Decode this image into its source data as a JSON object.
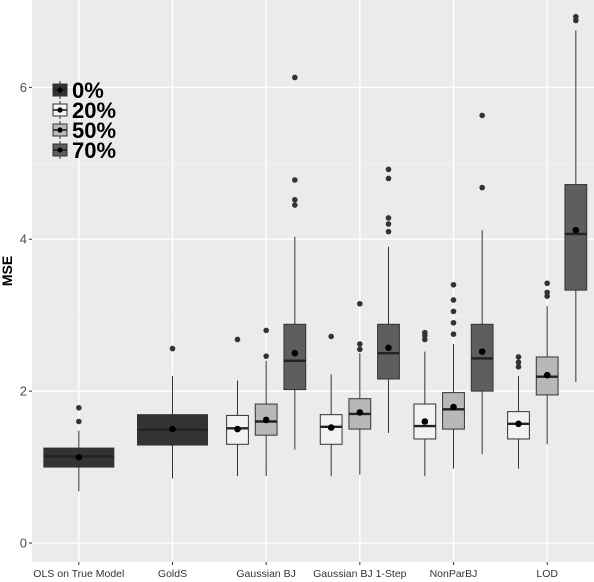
{
  "chart_data": {
    "type": "boxplot",
    "ylabel": "MSE",
    "xlabel": "",
    "ylim": [
      -0.25,
      7.15
    ],
    "yticks": [
      0,
      2,
      4,
      6
    ],
    "categories": [
      "OLS on True Model",
      "GoldS",
      "Gaussian BJ",
      "Gaussian BJ 1-Step",
      "NonParBJ",
      "LOD"
    ],
    "legend": {
      "position": "top-left",
      "entries": [
        {
          "label": "0%",
          "color": "#333333"
        },
        {
          "label": "20%",
          "color": "#f2f2f2"
        },
        {
          "label": "50%",
          "color": "#b8b8b8"
        },
        {
          "label": "70%",
          "color": "#5e5e5e"
        }
      ]
    },
    "series": [
      {
        "name": "0%",
        "color": "#333333",
        "boxes": [
          {
            "category": "OLS on True Model",
            "q1": 1.0,
            "median": 1.14,
            "q3": 1.25,
            "whisker_low": 0.68,
            "whisker_high": 1.48,
            "mean": 1.13,
            "outliers": [
              1.6,
              1.78
            ]
          },
          {
            "category": "GoldS",
            "q1": 1.29,
            "median": 1.49,
            "q3": 1.69,
            "whisker_low": 0.85,
            "whisker_high": 2.2,
            "mean": 1.5,
            "outliers": [
              2.56
            ]
          }
        ]
      },
      {
        "name": "20%",
        "color": "#f2f2f2",
        "boxes": [
          {
            "category": "Gaussian BJ",
            "q1": 1.3,
            "median": 1.51,
            "q3": 1.68,
            "whisker_low": 0.88,
            "whisker_high": 2.14,
            "mean": 1.5,
            "outliers": [
              2.68
            ]
          },
          {
            "category": "Gaussian BJ 1-Step",
            "q1": 1.3,
            "median": 1.53,
            "q3": 1.69,
            "whisker_low": 0.88,
            "whisker_high": 2.22,
            "mean": 1.52,
            "outliers": [
              2.72
            ]
          },
          {
            "category": "NonParBJ",
            "q1": 1.37,
            "median": 1.54,
            "q3": 1.83,
            "whisker_low": 0.88,
            "whisker_high": 2.52,
            "mean": 1.6,
            "outliers": [
              2.68,
              2.73,
              2.77
            ]
          },
          {
            "category": "LOD",
            "q1": 1.37,
            "median": 1.57,
            "q3": 1.73,
            "whisker_low": 0.98,
            "whisker_high": 2.2,
            "mean": 1.57,
            "outliers": [
              2.32,
              2.38,
              2.45
            ]
          }
        ]
      },
      {
        "name": "50%",
        "color": "#b8b8b8",
        "boxes": [
          {
            "category": "Gaussian BJ",
            "q1": 1.42,
            "median": 1.6,
            "q3": 1.83,
            "whisker_low": 0.88,
            "whisker_high": 2.4,
            "mean": 1.62,
            "outliers": [
              2.46,
              2.8
            ]
          },
          {
            "category": "Gaussian BJ 1-Step",
            "q1": 1.5,
            "median": 1.7,
            "q3": 1.9,
            "whisker_low": 0.9,
            "whisker_high": 2.5,
            "mean": 1.72,
            "outliers": [
              2.55,
              2.62,
              3.15
            ]
          },
          {
            "category": "NonParBJ",
            "q1": 1.5,
            "median": 1.76,
            "q3": 1.98,
            "whisker_low": 0.98,
            "whisker_high": 2.62,
            "mean": 1.79,
            "outliers": [
              2.75,
              2.9,
              3.05,
              3.2,
              3.4
            ]
          },
          {
            "category": "LOD",
            "q1": 1.95,
            "median": 2.19,
            "q3": 2.45,
            "whisker_low": 1.3,
            "whisker_high": 3.12,
            "mean": 2.21,
            "outliers": [
              3.25,
              3.3,
              3.42
            ]
          }
        ]
      },
      {
        "name": "70%",
        "color": "#5e5e5e",
        "boxes": [
          {
            "category": "Gaussian BJ",
            "q1": 2.02,
            "median": 2.4,
            "q3": 2.88,
            "whisker_low": 1.23,
            "whisker_high": 4.03,
            "mean": 2.5,
            "outliers": [
              4.45,
              4.52,
              4.78,
              6.13
            ]
          },
          {
            "category": "Gaussian BJ 1-Step",
            "q1": 2.16,
            "median": 2.5,
            "q3": 2.88,
            "whisker_low": 1.45,
            "whisker_high": 3.9,
            "mean": 2.57,
            "outliers": [
              4.1,
              4.2,
              4.28,
              4.8,
              4.92
            ]
          },
          {
            "category": "NonParBJ",
            "q1": 2.0,
            "median": 2.43,
            "q3": 2.88,
            "whisker_low": 1.17,
            "whisker_high": 4.12,
            "mean": 2.52,
            "outliers": [
              4.68,
              5.63
            ]
          },
          {
            "category": "LOD",
            "q1": 3.33,
            "median": 4.07,
            "q3": 4.72,
            "whisker_low": 2.12,
            "whisker_high": 6.75,
            "mean": 4.12,
            "outliers": [
              6.88,
              6.93
            ]
          }
        ]
      }
    ]
  }
}
